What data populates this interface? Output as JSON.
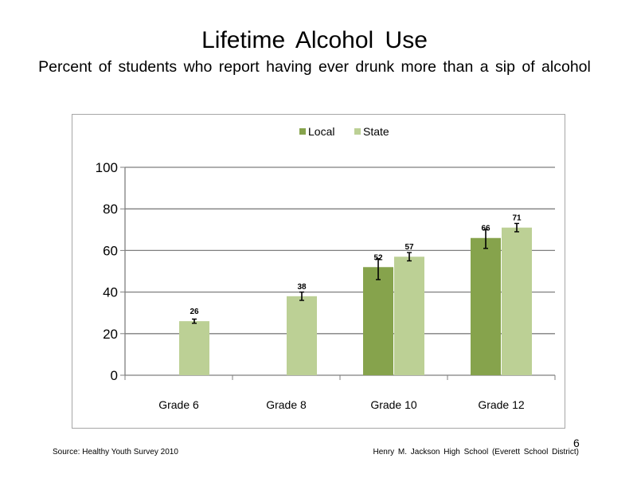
{
  "slide": {
    "title": "Lifetime Alcohol Use",
    "subtitle": "Percent of students who report having ever drunk more than a sip of alcohol",
    "source": "Source: Healthy Youth Survey 2010",
    "school": "Henry M. Jackson High School (Everett School District)",
    "page_number": "6"
  },
  "chart_data": {
    "type": "bar",
    "categories": [
      "Grade 6",
      "Grade 8",
      "Grade 10",
      "Grade 12"
    ],
    "series": [
      {
        "name": "Local",
        "color": "#86a34c",
        "values": [
          null,
          null,
          52,
          66
        ],
        "labels": [
          "",
          "",
          "52",
          "66"
        ],
        "error_low": [
          null,
          null,
          46,
          61
        ],
        "error_high": [
          null,
          null,
          56,
          70
        ]
      },
      {
        "name": "State",
        "color": "#bcd095",
        "values": [
          26,
          38,
          57,
          71
        ],
        "labels": [
          "26",
          "38",
          "57",
          "71"
        ],
        "error_low": [
          25,
          36,
          55,
          69
        ],
        "error_high": [
          27,
          40,
          59,
          73
        ]
      }
    ],
    "ylim": [
      0,
      100
    ],
    "yticks": [
      0,
      20,
      40,
      60,
      80,
      100
    ],
    "ytick_labels": [
      "0",
      "20",
      "40",
      "60",
      "80",
      "100"
    ],
    "grid": true,
    "legend_position": "top-center",
    "error_bars": true
  }
}
